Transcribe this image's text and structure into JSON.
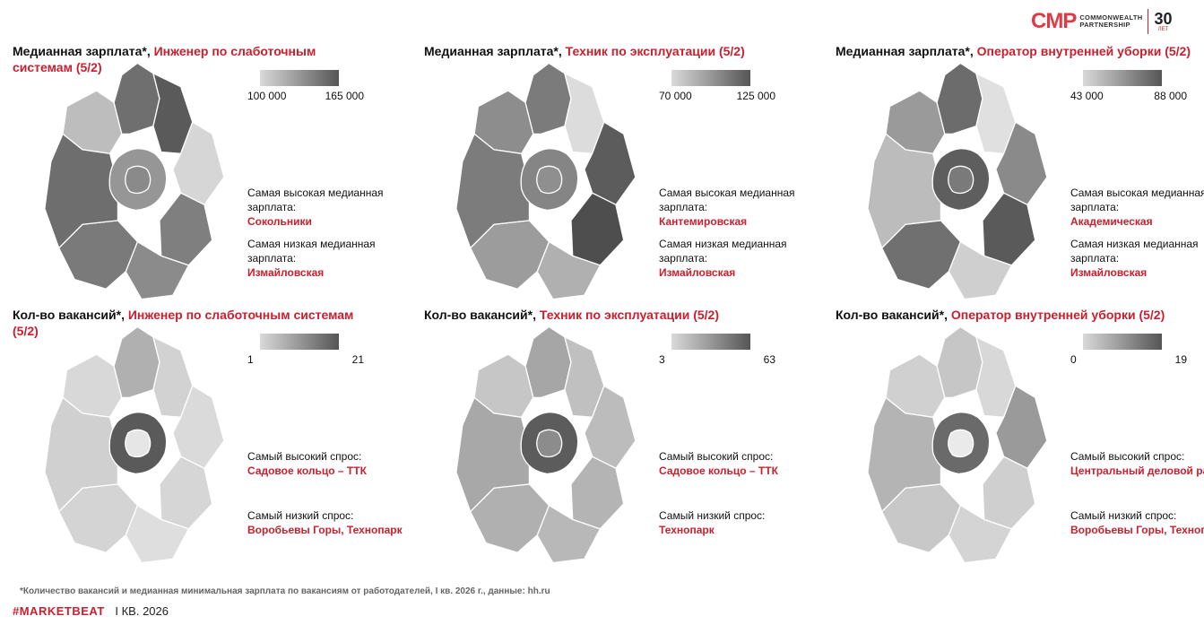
{
  "logo": {
    "brand": "CMP",
    "line1": "COMMONWEALTH",
    "line2": "PARTNERSHIP",
    "years": "30",
    "years_label": "ЛЕТ"
  },
  "panels": [
    {
      "title_prefix": "Медианная зарплата*, ",
      "title_highlight": "Инженер по слаботочным системам (5/2)",
      "legend_min": "100 000",
      "legend_max": "165 000",
      "note1_label": "Самая высокая медианная зарплата:",
      "note1_value": "Сокольники",
      "note2_label": "Самая низкая медианная зарплата:",
      "note2_value": "Измайловская",
      "colors": {
        "center": "#8a8a8a",
        "ring": "#969696",
        "n": "#6f6f6f",
        "ne": "#5a5a5a",
        "e": "#d6d6d6",
        "se": "#7f7f7f",
        "s": "#8b8b8b",
        "sw": "#7a7a7a",
        "w": "#6e6e6e",
        "nw": "#bdbdbd"
      }
    },
    {
      "title_prefix": "Медианная зарплата*, ",
      "title_highlight": "Техник по эксплуатации (5/2)",
      "legend_min": "70 000",
      "legend_max": "125 000",
      "note1_label": "Самая высокая медианная зарплата:",
      "note1_value": "Кантемировская",
      "note2_label": "Самая низкая медианная зарплата:",
      "note2_value": "Измайловская",
      "colors": {
        "center": "#8f8f8f",
        "ring": "#858585",
        "n": "#7b7b7b",
        "ne": "#dcdcdc",
        "e": "#5c5c5c",
        "se": "#4e4e4e",
        "s": "#b0b0b0",
        "sw": "#9c9c9c",
        "w": "#7c7c7c",
        "nw": "#8d8d8d"
      }
    },
    {
      "title_prefix": "Медианная зарплата*, ",
      "title_highlight": "Оператор внутренней уборки (5/2)",
      "legend_min": "43 000",
      "legend_max": "88 000",
      "note1_label": "Самая высокая медианная зарплата:",
      "note1_value": "Академическая",
      "note2_label": "Самая низкая медианная зарплата:",
      "note2_value": "Измайловская",
      "colors": {
        "center": "#7a7a7a",
        "ring": "#5e5e5e",
        "n": "#6c6c6c",
        "ne": "#e0e0e0",
        "e": "#8a8a8a",
        "se": "#5a5a5a",
        "s": "#cfcfcf",
        "sw": "#707070",
        "w": "#bcbcbc",
        "nw": "#9a9a9a"
      }
    },
    {
      "title_prefix": "Кол-во вакансий*, ",
      "title_highlight": "Инженер по слаботочным системам (5/2)",
      "legend_min": "1",
      "legend_max": "21",
      "note1_label": "Самый высокий спрос:",
      "note1_value": "Садовое кольцо – ТТК",
      "note2_label": "Самый низкий спрос:",
      "note2_value": "Воробьевы Горы, Технопарк",
      "colors": {
        "center": "#e6e6e6",
        "ring": "#5a5a5a",
        "n": "#b0b0b0",
        "ne": "#d2d2d2",
        "e": "#dadada",
        "se": "#d6d6d6",
        "s": "#dedede",
        "sw": "#d4d4d4",
        "w": "#d0d0d0",
        "nw": "#d8d8d8"
      }
    },
    {
      "title_prefix": "Кол-во вакансий*, ",
      "title_highlight": "Техник по эксплуатации (5/2)",
      "legend_min": "3",
      "legend_max": "63",
      "note1_label": "Самый высокий спрос:",
      "note1_value": "Садовое кольцо – ТТК",
      "note2_label": "Самый низкий спрос:",
      "note2_value": "Технопарк",
      "colors": {
        "center": "#8c8c8c",
        "ring": "#5c5c5c",
        "n": "#a6a6a6",
        "ne": "#c0c0c0",
        "e": "#bcbcbc",
        "se": "#b4b4b4",
        "s": "#b8b8b8",
        "sw": "#b0b0b0",
        "w": "#a8a8a8",
        "nw": "#c6c6c6"
      }
    },
    {
      "title_prefix": "Кол-во вакансий*, ",
      "title_highlight": "Оператор внутренней уборки (5/2)",
      "legend_min": "0",
      "legend_max": "19",
      "note1_label": "Самый высокий спрос:",
      "note1_value": "Центральный деловой район",
      "note2_label": "Самый низкий спрос:",
      "note2_value": "Воробьевы Горы, Технопарк",
      "colors": {
        "center": "#eaeaea",
        "ring": "#6a6a6a",
        "n": "#c6c6c6",
        "ne": "#d8d8d8",
        "e": "#9a9a9a",
        "se": "#cfcfcf",
        "s": "#d4d4d4",
        "sw": "#c8c8c8",
        "w": "#b4b4b4",
        "nw": "#d0d0d0"
      }
    }
  ],
  "footnote": "*Количество вакансий и медианная минимальная зарплата по вакансиям от работодателей, I кв. 2026 г., данные: hh.ru",
  "brand": {
    "tag": "#MARKETBEAT",
    "period": "I КВ. 2026"
  }
}
